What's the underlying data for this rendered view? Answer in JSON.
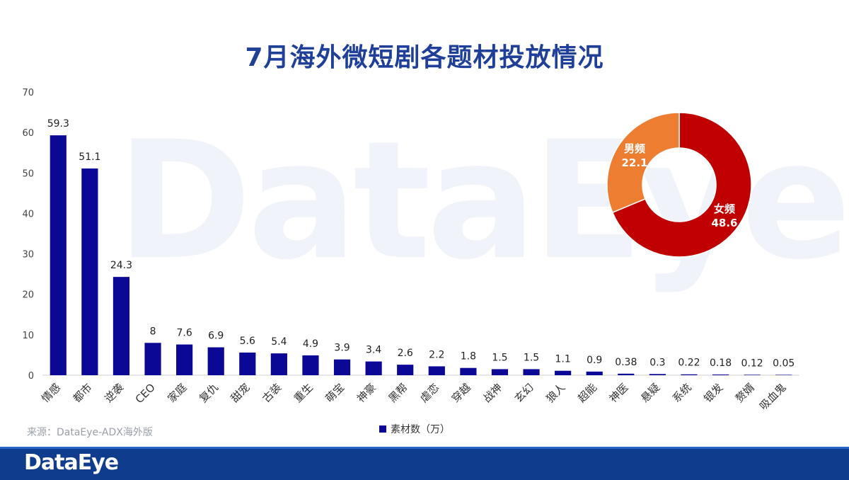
{
  "title": "7月海外微短剧各题材投放情况",
  "watermark": "DataEye",
  "source": "来源：DataEye-ADX海外版",
  "footer_logo": "DataEye",
  "colors": {
    "bar": "#0c0896",
    "female": "#c00000",
    "male": "#ed7d31",
    "title": "#1f3f98",
    "footer": "#0f3c8c"
  },
  "chart_data": [
    {
      "type": "bar",
      "title": "7月海外微短剧各题材投放情况",
      "legend": "素材数（万）",
      "legend_position": "bottom",
      "ylim": [
        0,
        70
      ],
      "yticks": [
        0,
        10,
        20,
        30,
        40,
        50,
        60,
        70
      ],
      "grid": false,
      "categories": [
        "情感",
        "都市",
        "逆袭",
        "CEO",
        "家庭",
        "复仇",
        "甜宠",
        "古装",
        "重生",
        "萌宝",
        "神豪",
        "黑帮",
        "虐恋",
        "穿越",
        "战神",
        "玄幻",
        "狼人",
        "超能",
        "神医",
        "悬疑",
        "系统",
        "银发",
        "赘婿",
        "吸血鬼"
      ],
      "values": [
        59.3,
        51.1,
        24.3,
        8,
        7.6,
        6.9,
        5.6,
        5.4,
        4.9,
        3.9,
        3.4,
        2.6,
        2.2,
        1.8,
        1.5,
        1.5,
        1.1,
        0.9,
        0.38,
        0.3,
        0.22,
        0.18,
        0.12,
        0.05
      ],
      "value_labels": [
        "59.3",
        "51.1",
        "24.3",
        "8",
        "7.6",
        "6.9",
        "5.6",
        "5.4",
        "4.9",
        "3.9",
        "3.4",
        "2.6",
        "2.2",
        "1.8",
        "1.5",
        "1.5",
        "1.1",
        "0.9",
        "0.38",
        "0.3",
        "0.22",
        "0.18",
        "0.12",
        "0.05"
      ]
    },
    {
      "type": "pie",
      "donut": true,
      "slices": [
        {
          "label": "女频",
          "value": 48.6,
          "value_label": "48.6",
          "color": "#c00000"
        },
        {
          "label": "男频",
          "value": 22.1,
          "value_label": "22.1",
          "color": "#ed7d31"
        }
      ]
    }
  ]
}
